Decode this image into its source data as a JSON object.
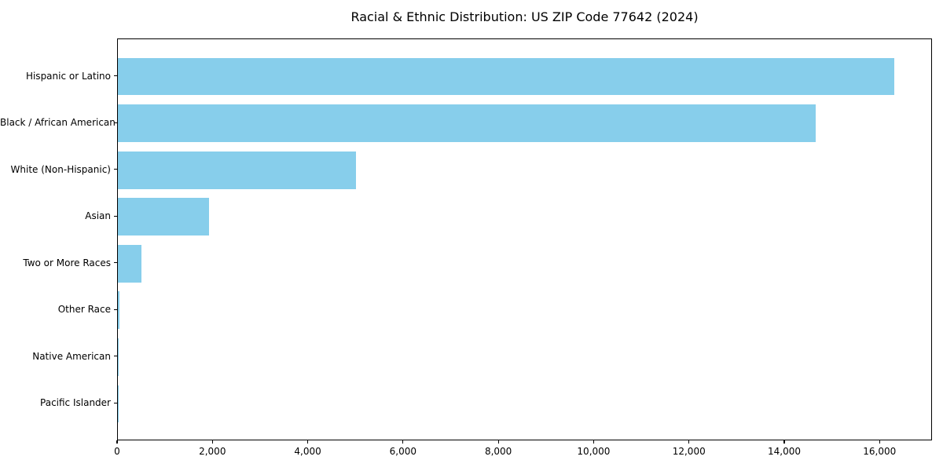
{
  "chart_data": {
    "type": "bar",
    "orientation": "horizontal",
    "title": "Racial & Ethnic Distribution: US ZIP Code 77642 (2024)",
    "categories": [
      "Hispanic or Latino",
      "Black / African American",
      "White (Non-Hispanic)",
      "Asian",
      "Two or More Races",
      "Other Race",
      "Native American",
      "Pacific Islander"
    ],
    "values": [
      16300,
      14640,
      5000,
      1910,
      500,
      30,
      15,
      5
    ],
    "bar_color": "#87CEEB",
    "xlabel": "",
    "ylabel": "",
    "xlim": [
      0,
      17100
    ],
    "x_ticks": [
      0,
      2000,
      4000,
      6000,
      8000,
      10000,
      12000,
      14000,
      16000
    ],
    "x_tick_labels": [
      "0",
      "2,000",
      "4,000",
      "6,000",
      "8,000",
      "10,000",
      "12,000",
      "14,000",
      "16,000"
    ],
    "grid": false,
    "legend": "none",
    "axis_color": "#000000",
    "background_color": "#ffffff"
  }
}
